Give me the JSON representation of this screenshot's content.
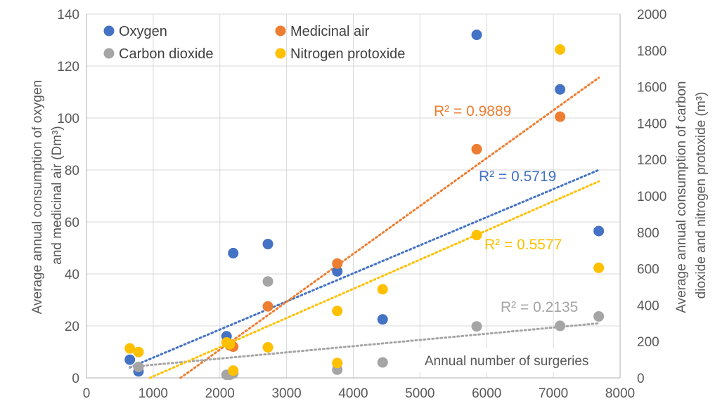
{
  "chart_data": {
    "type": "scatter",
    "title": "",
    "xlabel": "",
    "xlim": [
      0,
      8000
    ],
    "x_ticks": [
      0,
      1000,
      2000,
      3000,
      4000,
      5000,
      6000,
      7000,
      8000
    ],
    "y_left": {
      "label_line1": "Average annual consumption of oxygen",
      "label_line2": "and medicinal air (Dm³)",
      "ylim": [
        0,
        140
      ],
      "ticks": [
        0,
        20,
        40,
        60,
        80,
        100,
        120,
        140
      ]
    },
    "y_right": {
      "label_line1": "Average annual consumption of carbon",
      "label_line2": "dioxide and nitrogen protoxide (m³)",
      "ylim": [
        0,
        2000
      ],
      "ticks": [
        0,
        200,
        400,
        600,
        800,
        1000,
        1200,
        1400,
        1600,
        1800,
        2000
      ]
    },
    "grid": true,
    "legend_position": "top-left",
    "annotation": "Annual number of surgeries",
    "series": [
      {
        "name": "Oxygen",
        "axis": "left",
        "color": "#4472C4",
        "points": [
          [
            650,
            7
          ],
          [
            780,
            2.5
          ],
          [
            2100,
            16
          ],
          [
            2200,
            48
          ],
          [
            2720,
            51.5
          ],
          [
            3760,
            41
          ],
          [
            4440,
            22.5
          ],
          [
            5850,
            132
          ],
          [
            7100,
            111
          ],
          [
            7680,
            56.5
          ]
        ],
        "trend": {
          "from": [
            650,
            4
          ],
          "to": [
            7680,
            80
          ],
          "r2_label": "R² = 0.5719"
        }
      },
      {
        "name": "Medicinal air",
        "axis": "left",
        "color": "#ED7D31",
        "points": [
          [
            2150,
            12.5
          ],
          [
            2200,
            12
          ],
          [
            2720,
            27.5
          ],
          [
            3760,
            44
          ],
          [
            5850,
            88
          ],
          [
            7100,
            100.5
          ]
        ],
        "trend": {
          "from": [
            1410,
            0
          ],
          "to": [
            7680,
            115.5
          ],
          "r2_label": "R² = 0.9889"
        }
      },
      {
        "name": "Carbon dioxide",
        "axis": "right",
        "color": "#A5A5A5",
        "points": [
          [
            780,
            60
          ],
          [
            2100,
            17
          ],
          [
            2150,
            17
          ],
          [
            2200,
            25
          ],
          [
            2720,
            530
          ],
          [
            3760,
            80
          ],
          [
            3760,
            45
          ],
          [
            4440,
            85
          ],
          [
            5850,
            283
          ],
          [
            7100,
            286
          ],
          [
            7680,
            338
          ]
        ],
        "trend": {
          "from": [
            650,
            60
          ],
          "to": [
            7680,
            300
          ],
          "r2_label": "R² = 0.2135"
        }
      },
      {
        "name": "Nitrogen protoxide",
        "axis": "right",
        "color": "#FFC000",
        "points": [
          [
            650,
            162
          ],
          [
            780,
            142
          ],
          [
            2100,
            195
          ],
          [
            2150,
            185
          ],
          [
            2200,
            40
          ],
          [
            2720,
            168
          ],
          [
            3760,
            368
          ],
          [
            3760,
            82
          ],
          [
            4440,
            487
          ],
          [
            5850,
            785
          ],
          [
            7100,
            1805
          ],
          [
            7680,
            605
          ]
        ],
        "trend": {
          "from": [
            950,
            0
          ],
          "to": [
            7680,
            1080
          ],
          "r2_label": "R² = 0.5577"
        }
      }
    ]
  }
}
